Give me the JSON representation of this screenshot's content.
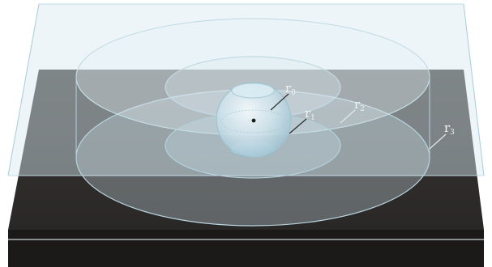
{
  "diagram": {
    "labels": [
      {
        "id": "r0",
        "letter": "r",
        "sub": "0"
      },
      {
        "id": "r1",
        "letter": "r",
        "sub": "1"
      },
      {
        "id": "r2",
        "letter": "r",
        "sub": "2"
      },
      {
        "id": "r3",
        "letter": "r",
        "sub": "3"
      }
    ]
  },
  "colors": {
    "substrate_top": "#2e2c29",
    "substrate_side": "#1e1c1a",
    "overlay_slab": "#d6e9f1",
    "sphere": "#cfe3ec",
    "label": "#f2f2f2"
  }
}
